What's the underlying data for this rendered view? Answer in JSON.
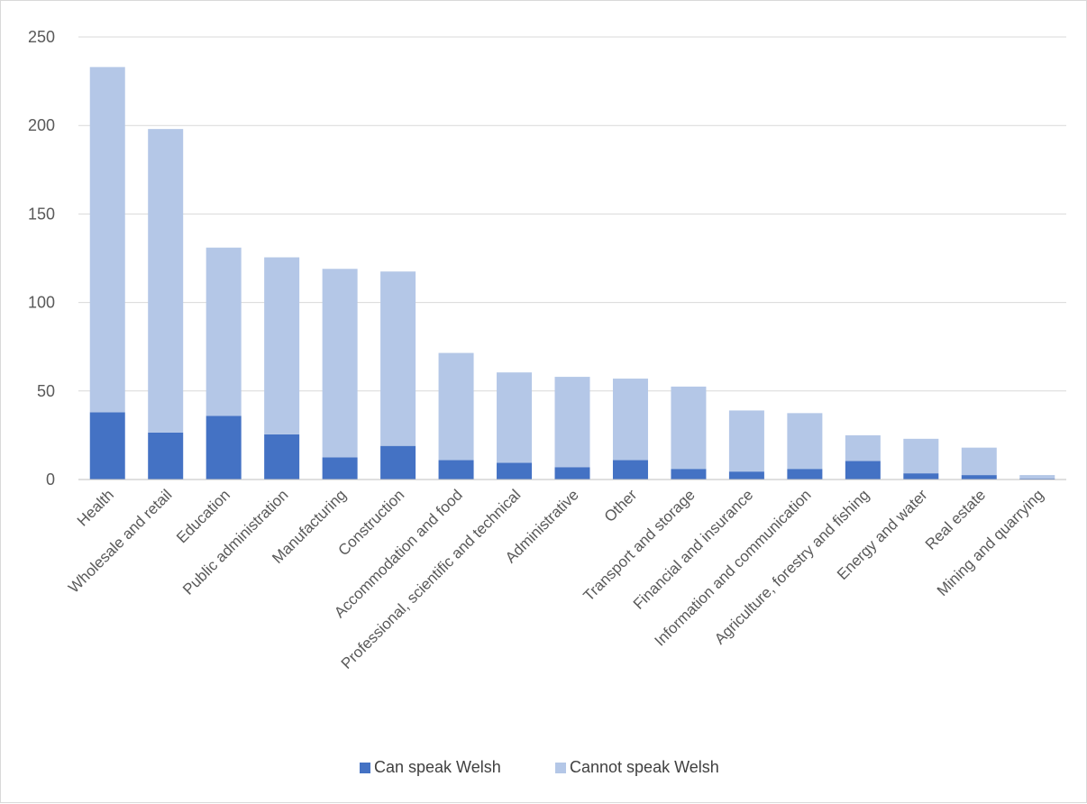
{
  "chart_data": {
    "type": "bar",
    "stacked": true,
    "categories": [
      "Health",
      "Wholesale and retail",
      "Education",
      "Public administration",
      "Manufacturing",
      "Construction",
      "Accommodation and food",
      "Professional, scientific and technical",
      "Administrative",
      "Other",
      "Transport and storage",
      "Financial and insurance",
      "Information and communication",
      "Agriculture, forestry and fishing",
      "Energy and water",
      "Real estate",
      "Mining and quarrying"
    ],
    "series": [
      {
        "name": "Can speak Welsh",
        "color": "#4472c4",
        "values": [
          38,
          26.5,
          36,
          25.5,
          12.5,
          19,
          11,
          9.5,
          7,
          11,
          6,
          4.5,
          6,
          10.5,
          3.5,
          2.5,
          0.5
        ]
      },
      {
        "name": "Cannot speak Welsh",
        "color": "#b4c7e7",
        "values": [
          195,
          171.5,
          95,
          100,
          106.5,
          98.5,
          60.5,
          51,
          51,
          46,
          46.5,
          34.5,
          31.5,
          14.5,
          19.5,
          15.5,
          2
        ]
      }
    ],
    "yticks": [
      0,
      50,
      100,
      150,
      200,
      250
    ],
    "ylim": [
      0,
      250
    ],
    "grid": true,
    "legend": "bottom",
    "title": "",
    "xlabel": "",
    "ylabel": ""
  }
}
